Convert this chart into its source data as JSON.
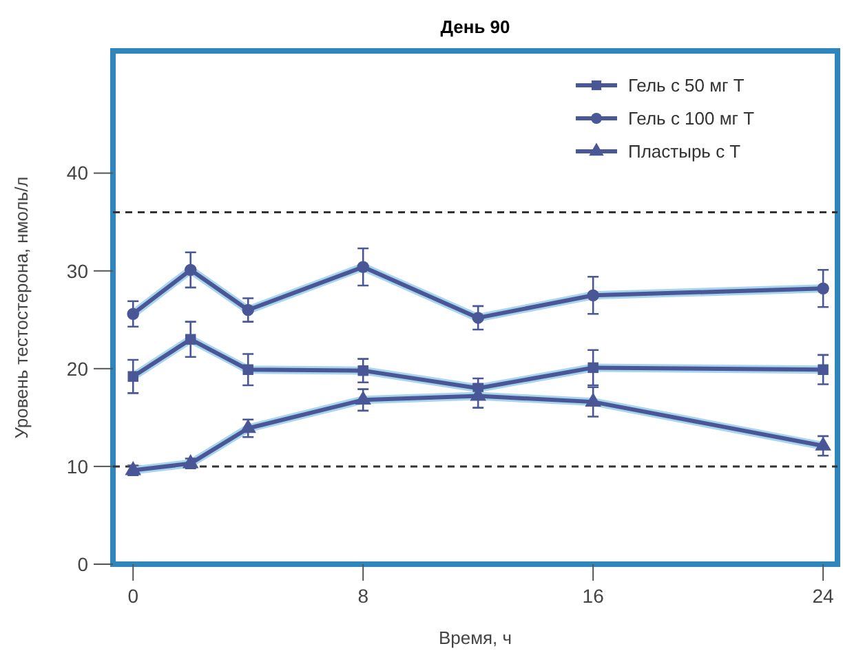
{
  "chart_data": {
    "type": "line",
    "title": "День 90",
    "xlabel": "Время, ч",
    "ylabel": "Уровень тестостерона, нмоль/л",
    "xlim": [
      -0.7,
      24.5
    ],
    "xticks": [
      0,
      8,
      16,
      24
    ],
    "ylim": [
      0,
      52.5
    ],
    "yticks": [
      0,
      10,
      20,
      30,
      40
    ],
    "legend": "top right",
    "line_style": "solid",
    "ref_lines": [
      {
        "axis": "y",
        "value": 36,
        "line_style": "dashed",
        "color": "#333333"
      },
      {
        "axis": "y",
        "value": 10,
        "line_style": "dashed",
        "color": "#333333"
      }
    ],
    "series": [
      {
        "name": "Гель с 50 мг Т",
        "color": "#4a5796",
        "marker": "square",
        "x": [
          0,
          2,
          4,
          8,
          12,
          16,
          24
        ],
        "values": [
          19.2,
          23,
          19.9,
          19.8,
          18,
          20.1,
          19.9
        ],
        "errors": [
          1.7,
          1.8,
          1.6,
          1.2,
          1,
          1.8,
          1.5
        ]
      },
      {
        "name": "Гель с 100 мг Т",
        "color": "#4a5796",
        "marker": "circle",
        "x": [
          0,
          2,
          4,
          8,
          12,
          16,
          24
        ],
        "values": [
          25.6,
          30.1,
          26,
          30.4,
          25.2,
          27.5,
          28.2
        ],
        "errors": [
          1.3,
          1.8,
          1.2,
          1.9,
          1.2,
          1.9,
          1.9
        ]
      },
      {
        "name": "Пластырь с Т",
        "color": "#4a5796",
        "marker": "triangle",
        "x": [
          0,
          2,
          4,
          8,
          12,
          16,
          24
        ],
        "values": [
          9.6,
          10.3,
          13.9,
          16.8,
          17.2,
          16.6,
          12.1
        ],
        "errors": [
          0.5,
          0.5,
          0.9,
          1.1,
          1.2,
          1.5,
          1
        ]
      }
    ]
  }
}
